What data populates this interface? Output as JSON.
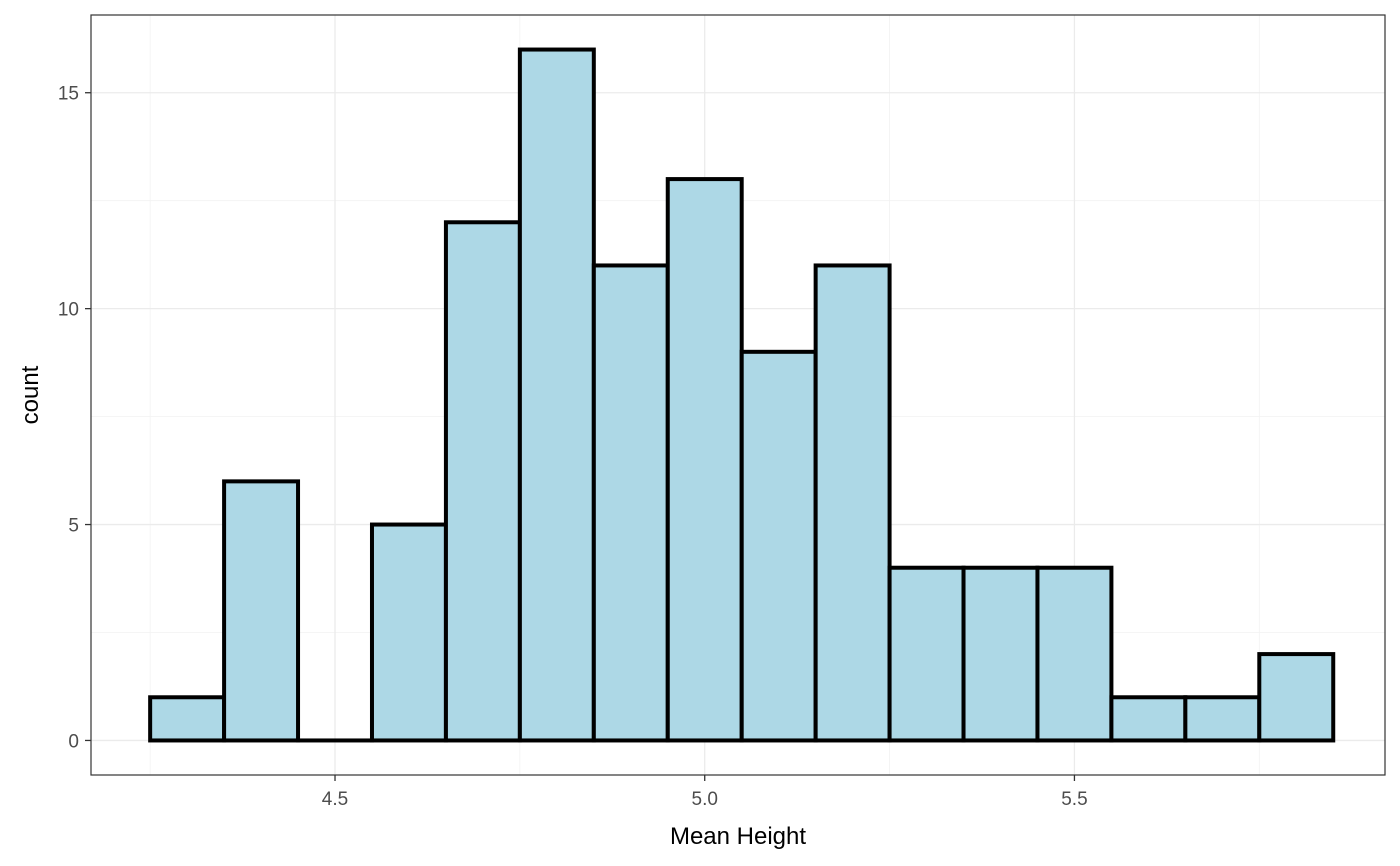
{
  "chart_data": {
    "type": "bar",
    "subtype": "histogram",
    "xlabel": "Mean Height",
    "ylabel": "count",
    "xlim": [
      4.17,
      5.92
    ],
    "ylim": [
      -0.8,
      16.8
    ],
    "x_ticks": [
      4.5,
      5.0,
      5.5
    ],
    "x_tick_labels": [
      "4.5",
      "5.0",
      "5.5"
    ],
    "y_ticks": [
      0,
      5,
      10,
      15
    ],
    "y_tick_labels": [
      "0",
      "5",
      "10",
      "15"
    ],
    "bin_width": 0.1,
    "bins": [
      {
        "x0": 4.25,
        "x1": 4.35,
        "count": 1
      },
      {
        "x0": 4.35,
        "x1": 4.45,
        "count": 6
      },
      {
        "x0": 4.45,
        "x1": 4.55,
        "count": 0
      },
      {
        "x0": 4.55,
        "x1": 4.65,
        "count": 5
      },
      {
        "x0": 4.65,
        "x1": 4.75,
        "count": 12
      },
      {
        "x0": 4.75,
        "x1": 4.85,
        "count": 16
      },
      {
        "x0": 4.85,
        "x1": 4.95,
        "count": 11
      },
      {
        "x0": 4.95,
        "x1": 5.05,
        "count": 13
      },
      {
        "x0": 5.05,
        "x1": 5.15,
        "count": 9
      },
      {
        "x0": 5.15,
        "x1": 5.25,
        "count": 11
      },
      {
        "x0": 5.25,
        "x1": 5.35,
        "count": 4
      },
      {
        "x0": 5.35,
        "x1": 5.45,
        "count": 4
      },
      {
        "x0": 5.45,
        "x1": 5.55,
        "count": 4
      },
      {
        "x0": 5.55,
        "x1": 5.65,
        "count": 1
      },
      {
        "x0": 5.65,
        "x1": 5.75,
        "count": 1
      },
      {
        "x0": 5.75,
        "x1": 5.85,
        "count": 2
      }
    ],
    "fill_color": "#add8e6",
    "outline_color": "#000000",
    "grid": true,
    "legend": "none"
  }
}
